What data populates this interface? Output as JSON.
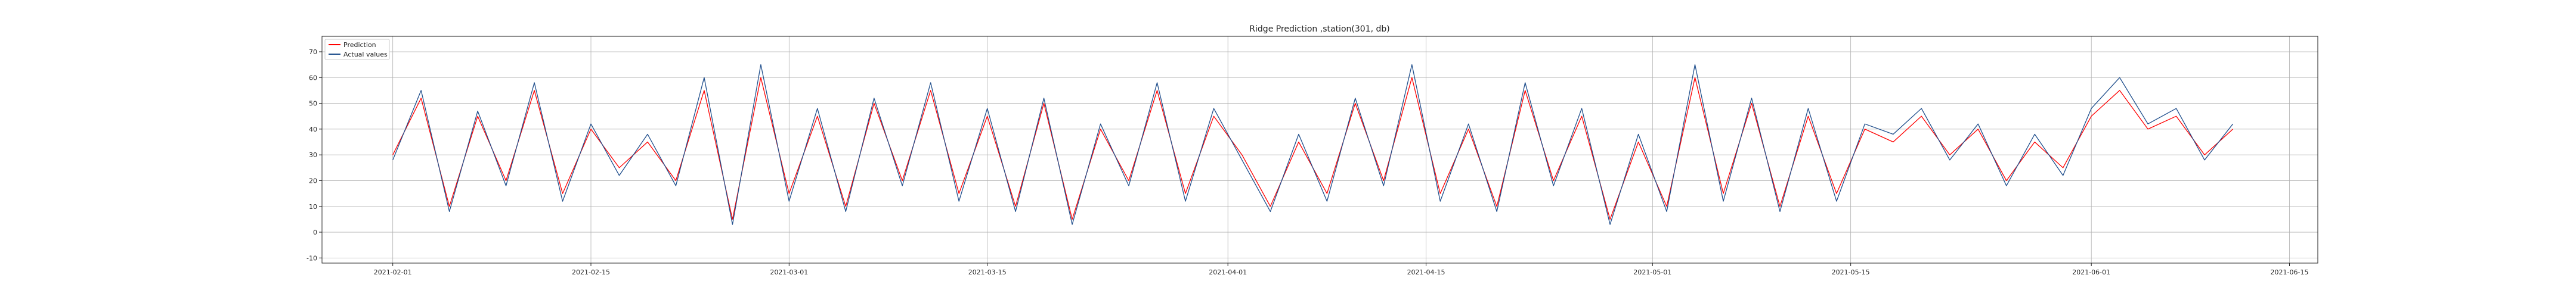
{
  "chart_data": {
    "type": "line",
    "title": "Ridge Prediction ,station(301, db)",
    "xlabel": "",
    "ylabel": "",
    "x_range": [
      "2021-01-27",
      "2021-06-17"
    ],
    "x_ticks": [
      "2021-02-01",
      "2021-02-15",
      "2021-03-01",
      "2021-03-15",
      "2021-04-01",
      "2021-04-15",
      "2021-05-01",
      "2021-05-15",
      "2021-06-01",
      "2021-06-15"
    ],
    "ylim": [
      -12,
      76
    ],
    "y_ticks": [
      -10,
      0,
      10,
      20,
      30,
      40,
      50,
      60,
      70
    ],
    "grid": true,
    "legend": {
      "placement": "top-left",
      "entries": [
        "Prediction",
        "Actual values"
      ]
    },
    "series": [
      {
        "name": "Prediction",
        "color": "#ff0000",
        "x": [
          "2021-02-01",
          "2021-02-03",
          "2021-02-05",
          "2021-02-07",
          "2021-02-09",
          "2021-02-11",
          "2021-02-13",
          "2021-02-15",
          "2021-02-17",
          "2021-02-19",
          "2021-02-21",
          "2021-02-23",
          "2021-02-25",
          "2021-02-27",
          "2021-03-01",
          "2021-03-03",
          "2021-03-05",
          "2021-03-07",
          "2021-03-09",
          "2021-03-11",
          "2021-03-13",
          "2021-03-15",
          "2021-03-17",
          "2021-03-19",
          "2021-03-21",
          "2021-03-23",
          "2021-03-25",
          "2021-03-27",
          "2021-03-29",
          "2021-03-31",
          "2021-04-02",
          "2021-04-04",
          "2021-04-06",
          "2021-04-08",
          "2021-04-10",
          "2021-04-12",
          "2021-04-14",
          "2021-04-16",
          "2021-04-18",
          "2021-04-20",
          "2021-04-22",
          "2021-04-24",
          "2021-04-26",
          "2021-04-28",
          "2021-04-30",
          "2021-05-02",
          "2021-05-04",
          "2021-05-06",
          "2021-05-08",
          "2021-05-10",
          "2021-05-12",
          "2021-05-14",
          "2021-05-16",
          "2021-05-18",
          "2021-05-20",
          "2021-05-22",
          "2021-05-24",
          "2021-05-26",
          "2021-05-28",
          "2021-05-30",
          "2021-06-01",
          "2021-06-03",
          "2021-06-05",
          "2021-06-07",
          "2021-06-09",
          "2021-06-11"
        ],
        "y": [
          30,
          52,
          10,
          45,
          20,
          55,
          15,
          40,
          25,
          35,
          20,
          55,
          5,
          60,
          15,
          45,
          10,
          50,
          20,
          55,
          15,
          45,
          10,
          50,
          5,
          40,
          20,
          55,
          15,
          45,
          30,
          10,
          35,
          15,
          50,
          20,
          60,
          15,
          40,
          10,
          55,
          20,
          45,
          5,
          35,
          10,
          60,
          15,
          50,
          10,
          45,
          15,
          40,
          35,
          45,
          30,
          40,
          20,
          35,
          25,
          45,
          55,
          40,
          45,
          30,
          40
        ]
      },
      {
        "name": "Actual values",
        "color": "#1f4e8c",
        "x": [
          "2021-02-01",
          "2021-02-03",
          "2021-02-05",
          "2021-02-07",
          "2021-02-09",
          "2021-02-11",
          "2021-02-13",
          "2021-02-15",
          "2021-02-17",
          "2021-02-19",
          "2021-02-21",
          "2021-02-23",
          "2021-02-25",
          "2021-02-27",
          "2021-03-01",
          "2021-03-03",
          "2021-03-05",
          "2021-03-07",
          "2021-03-09",
          "2021-03-11",
          "2021-03-13",
          "2021-03-15",
          "2021-03-17",
          "2021-03-19",
          "2021-03-21",
          "2021-03-23",
          "2021-03-25",
          "2021-03-27",
          "2021-03-29",
          "2021-03-31",
          "2021-04-02",
          "2021-04-04",
          "2021-04-06",
          "2021-04-08",
          "2021-04-10",
          "2021-04-12",
          "2021-04-14",
          "2021-04-16",
          "2021-04-18",
          "2021-04-20",
          "2021-04-22",
          "2021-04-24",
          "2021-04-26",
          "2021-04-28",
          "2021-04-30",
          "2021-05-02",
          "2021-05-04",
          "2021-05-06",
          "2021-05-08",
          "2021-05-10",
          "2021-05-12",
          "2021-05-14",
          "2021-05-16",
          "2021-05-18",
          "2021-05-20",
          "2021-05-22",
          "2021-05-24",
          "2021-05-26",
          "2021-05-28",
          "2021-05-30",
          "2021-06-01",
          "2021-06-03",
          "2021-06-05",
          "2021-06-07",
          "2021-06-09",
          "2021-06-11"
        ],
        "y": [
          28,
          55,
          8,
          47,
          18,
          58,
          12,
          42,
          22,
          38,
          18,
          60,
          3,
          65,
          12,
          48,
          8,
          52,
          18,
          58,
          12,
          48,
          8,
          52,
          3,
          42,
          18,
          58,
          12,
          48,
          28,
          8,
          38,
          12,
          52,
          18,
          65,
          12,
          42,
          8,
          58,
          18,
          48,
          3,
          38,
          8,
          65,
          12,
          52,
          8,
          48,
          12,
          42,
          38,
          48,
          28,
          42,
          18,
          38,
          22,
          48,
          60,
          42,
          48,
          28,
          42
        ]
      }
    ]
  }
}
